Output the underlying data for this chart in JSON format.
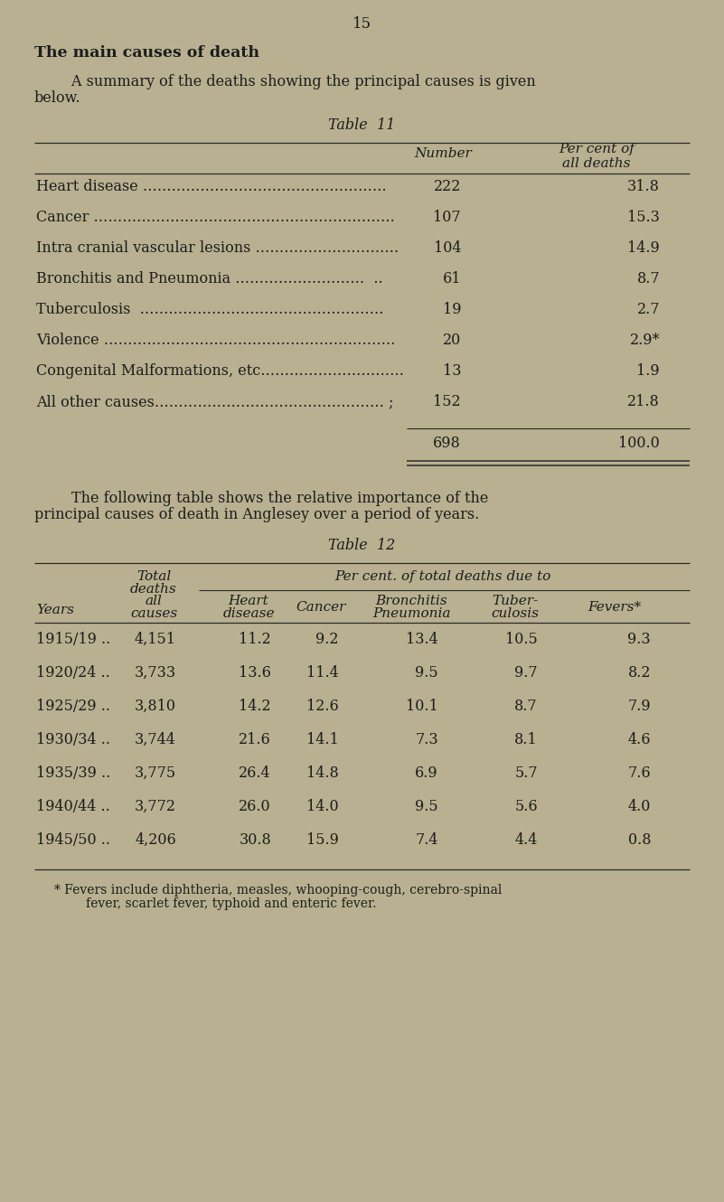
{
  "bg_color": "#b8b090",
  "page_number": "15",
  "section_title": "The main causes of death",
  "intro_line1": "        A summary of the deaths showing the principal causes is given",
  "intro_line2": "below.",
  "table11_title": "Table  11",
  "table11_rows": [
    [
      "Heart disease ……………………………………………",
      "222",
      "31.8"
    ],
    [
      "Cancer ………………………………………………………",
      "107",
      "15.3"
    ],
    [
      "Intra cranial vascular lesions …………………………",
      "104",
      "14.9"
    ],
    [
      "Bronchitis and Pneumonia ………………………  ..",
      "61",
      "8.7"
    ],
    [
      "Tuberculosis  ……………………………………………",
      "19",
      "2.7"
    ],
    [
      "Violence …………………………………………………….",
      "20",
      "2.9*"
    ],
    [
      "Congenital Malformations, etc…………………………",
      "13",
      "1.9"
    ],
    [
      "All other causes………………………………………… ;",
      "152",
      "21.8"
    ]
  ],
  "table11_total": [
    "698",
    "100.0"
  ],
  "inter_line1": "        The following table shows the relative importance of the",
  "inter_line2": "principal causes of death in Anglesey over a period of years.",
  "table12_title": "Table  12",
  "table12_rows": [
    [
      "1915/19 ..",
      "4,151",
      "11.2",
      "9.2",
      "13.4",
      "10.5",
      "9.3"
    ],
    [
      "1920/24 ..",
      "3,733",
      "13.6",
      "11.4",
      "9.5",
      "9.7",
      "8.2"
    ],
    [
      "1925/29 ..",
      "3,810",
      "14.2",
      "12.6",
      "10.1",
      "8.7",
      "7.9"
    ],
    [
      "1930/34 ..",
      "3,744",
      "21.6",
      "14.1",
      "7.3",
      "8.1",
      "4.6"
    ],
    [
      "1935/39 ..",
      "3,775",
      "26.4",
      "14.8",
      "6.9",
      "5.7",
      "7.6"
    ],
    [
      "1940/44 ..",
      "3,772",
      "26.0",
      "14.0",
      "9.5",
      "5.6",
      "4.0"
    ],
    [
      "1945/50 ..",
      "4,206",
      "30.8",
      "15.9",
      "7.4",
      "4.4",
      "0.8"
    ]
  ],
  "footnote_line1": "* Fevers include diphtheria, measles, whooping-cough, cerebro-spinal",
  "footnote_line2": "        fever, scarlet fever, typhoid and enteric fever."
}
